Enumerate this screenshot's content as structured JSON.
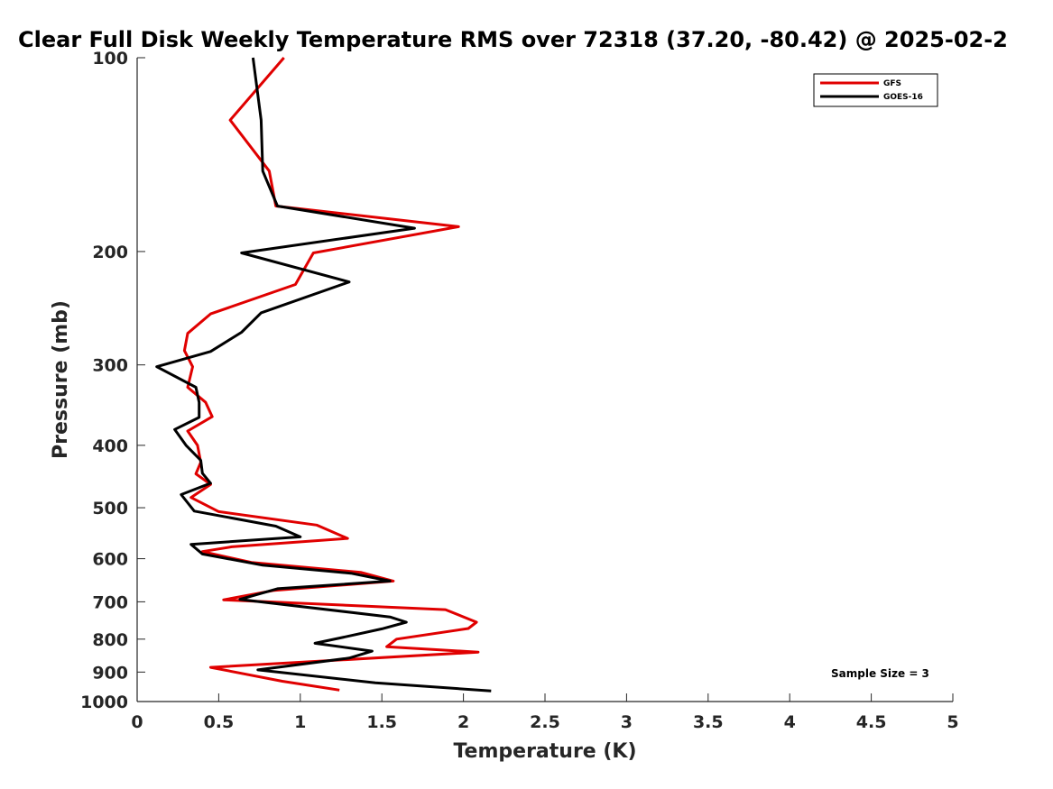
{
  "chart_data": {
    "type": "line",
    "title": "Clear Full Disk Weekly Temperature RMS over 72318 (37.20, -80.42) @ 2025-02-2",
    "xlabel": "Temperature (K)",
    "ylabel": "Pressure (mb)",
    "xlim": [
      0,
      5
    ],
    "ylim": [
      100,
      1000
    ],
    "yscale": "log",
    "y_reversed": true,
    "grid": false,
    "legend_position": "top-right",
    "x_ticks": [
      "0",
      "0.5",
      "1",
      "1.5",
      "2",
      "2.5",
      "3",
      "3.5",
      "4",
      "4.5",
      "5"
    ],
    "y_ticks": [
      "100",
      "200",
      "300",
      "400",
      "500",
      "600",
      "700",
      "800",
      "900",
      "1000"
    ],
    "annotation": "Sample Size = 3",
    "series": [
      {
        "name": "GFS",
        "color": "#e00000",
        "points": [
          [
            0.9,
            100
          ],
          [
            0.57,
            125
          ],
          [
            0.81,
            150
          ],
          [
            0.85,
            170
          ],
          [
            1.97,
            183
          ],
          [
            1.08,
            201
          ],
          [
            0.97,
            225
          ],
          [
            0.45,
            250
          ],
          [
            0.31,
            268
          ],
          [
            0.29,
            285
          ],
          [
            0.34,
            302
          ],
          [
            0.31,
            325
          ],
          [
            0.42,
            343
          ],
          [
            0.46,
            361
          ],
          [
            0.31,
            380
          ],
          [
            0.37,
            400
          ],
          [
            0.39,
            425
          ],
          [
            0.36,
            443
          ],
          [
            0.45,
            460
          ],
          [
            0.33,
            482
          ],
          [
            0.5,
            507
          ],
          [
            1.1,
            532
          ],
          [
            1.29,
            558
          ],
          [
            0.58,
            575
          ],
          [
            0.4,
            585
          ],
          [
            0.7,
            608
          ],
          [
            1.37,
            630
          ],
          [
            1.57,
            650
          ],
          [
            0.84,
            672
          ],
          [
            0.53,
            695
          ],
          [
            1.89,
            720
          ],
          [
            2.08,
            753
          ],
          [
            2.03,
            770
          ],
          [
            1.59,
            800
          ],
          [
            1.53,
            822
          ],
          [
            2.09,
            838
          ],
          [
            0.45,
            885
          ],
          [
            0.89,
            930
          ],
          [
            1.24,
            960
          ]
        ]
      },
      {
        "name": "GOES-16",
        "color": "#000000",
        "points": [
          [
            0.71,
            100
          ],
          [
            0.76,
            125
          ],
          [
            0.77,
            150
          ],
          [
            0.86,
            170
          ],
          [
            1.7,
            184
          ],
          [
            0.64,
            201
          ],
          [
            1.3,
            223
          ],
          [
            0.76,
            249
          ],
          [
            0.64,
            267
          ],
          [
            0.45,
            286
          ],
          [
            0.12,
            302
          ],
          [
            0.36,
            325
          ],
          [
            0.38,
            343
          ],
          [
            0.38,
            362
          ],
          [
            0.23,
            378
          ],
          [
            0.3,
            400
          ],
          [
            0.39,
            422
          ],
          [
            0.4,
            442
          ],
          [
            0.45,
            458
          ],
          [
            0.27,
            477
          ],
          [
            0.35,
            506
          ],
          [
            0.85,
            534
          ],
          [
            1.0,
            555
          ],
          [
            0.33,
            570
          ],
          [
            0.4,
            590
          ],
          [
            0.77,
            614
          ],
          [
            1.31,
            632
          ],
          [
            1.55,
            650
          ],
          [
            0.86,
            668
          ],
          [
            0.63,
            694
          ],
          [
            1.55,
            739
          ],
          [
            1.65,
            753
          ],
          [
            1.5,
            771
          ],
          [
            1.26,
            795
          ],
          [
            1.09,
            812
          ],
          [
            1.44,
            835
          ],
          [
            1.3,
            856
          ],
          [
            0.74,
            893
          ],
          [
            1.46,
            935
          ],
          [
            2.17,
            963
          ]
        ]
      }
    ]
  }
}
